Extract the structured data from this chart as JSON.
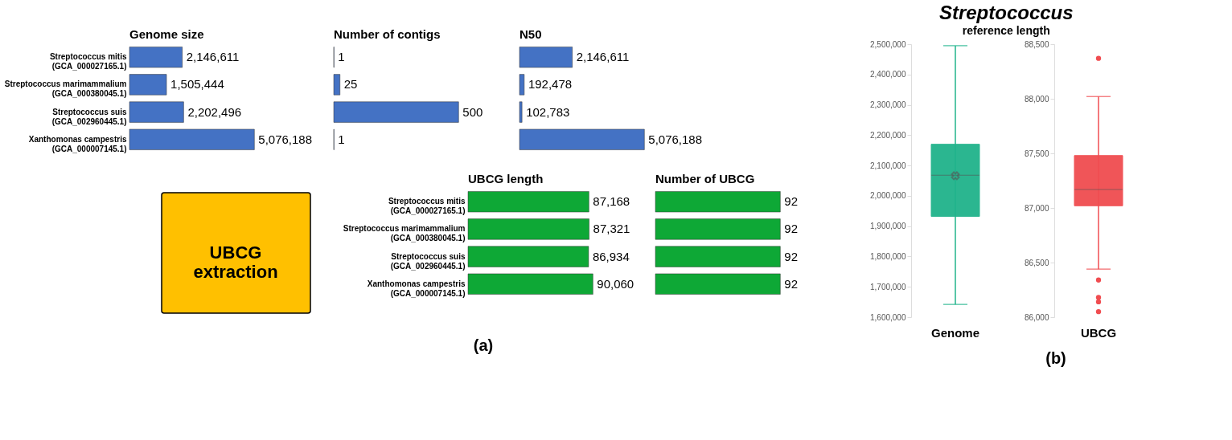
{
  "chart_data": [
    {
      "type": "bar",
      "orientation": "horizontal",
      "title": "Genome size",
      "categories": [
        "Streptococcus mitis\n(GCA_000027165.1)",
        "Streptococcus marimammalium\n(GCA_000380045.1)",
        "Streptococcus suis\n(GCA_002960445.1)",
        "Xanthomonas campestris\n(GCA_000007145.1)"
      ],
      "values": [
        2146611,
        1505444,
        2202496,
        5076188
      ],
      "value_labels": [
        "2,146,611",
        "1,505,444",
        "2,202,496",
        "5,076,188"
      ],
      "data_labels": true,
      "color": "#4472c4",
      "tick_labels": "y"
    },
    {
      "type": "bar",
      "orientation": "horizontal",
      "title": "Number of contigs",
      "categories": [
        null,
        null,
        null,
        null
      ],
      "values": [
        1,
        25,
        500,
        1
      ],
      "data_labels": true,
      "color": "#4472c4",
      "tick_labels": false
    },
    {
      "type": "bar",
      "orientation": "horizontal",
      "title": "N50",
      "categories": [
        null,
        null,
        null,
        null
      ],
      "values": [
        2146611,
        192478,
        102783,
        5076188
      ],
      "value_labels": [
        "2,146,611",
        "192,478",
        "102,783",
        "5,076,188"
      ],
      "data_labels": true,
      "color": "#4472c4",
      "tick_labels": false
    },
    {
      "type": "bar",
      "orientation": "horizontal",
      "title": "UBCG length",
      "categories": [
        "Streptococcus mitis\n(GCA_000027165.1)",
        "Streptococcus marimammalium\n(GCA_000380045.1)",
        "Streptococcus suis\n(GCA_002960445.1)",
        "Xanthomonas campestris\n(GCA_000007145.1)"
      ],
      "values": [
        87168,
        87321,
        86934,
        90060
      ],
      "value_labels": [
        "87,168",
        "87,321",
        "86,934",
        "90,060"
      ],
      "data_labels": true,
      "color": "#0ea836",
      "tick_labels": "y",
      "annotations": [
        "UBCG extraction",
        "(a)"
      ]
    },
    {
      "type": "bar",
      "orientation": "horizontal",
      "title": "Number of UBCG",
      "categories": [
        null,
        null,
        null,
        null
      ],
      "values": [
        92,
        92,
        92,
        92
      ],
      "data_labels": true,
      "color": "#0ea836",
      "tick_labels": false
    },
    {
      "type": "box",
      "title": "Streptococcus",
      "subtitle": "reference length",
      "categories": [
        "Genome"
      ],
      "color": "#20b38b",
      "boxes": [
        {
          "low": 1642000,
          "q1": 1932000,
          "median": 2068000,
          "q3": 2170000,
          "high": 2495000,
          "mean": 2066000
        }
      ],
      "ylim": [
        1600000,
        2500000
      ],
      "yticks": [
        {
          "value": 1600000,
          "label": "1,600,000"
        },
        {
          "value": 1700000,
          "label": "1,700,000"
        },
        {
          "value": 1800000,
          "label": "1,800,000"
        },
        {
          "value": 1900000,
          "label": "1,900,000"
        },
        {
          "value": 2000000,
          "label": "2,000,000"
        },
        {
          "value": 2100000,
          "label": "2,100,000"
        },
        {
          "value": 2200000,
          "label": "2,200,000"
        },
        {
          "value": 2300000,
          "label": "2,300,000"
        },
        {
          "value": 2400000,
          "label": "2,400,000"
        },
        {
          "value": 2500000,
          "label": "2,500,000"
        }
      ]
    },
    {
      "type": "box",
      "categories": [
        "UBCG"
      ],
      "color": "#f04c50",
      "boxes": [
        {
          "low": 86440,
          "q1": 87020,
          "median": 87170,
          "q3": 87480,
          "high": 88020,
          "outliers": [
            88370,
            86340,
            86180,
            86140,
            86050
          ]
        }
      ],
      "ylim": [
        86000,
        88500
      ],
      "yticks": [
        {
          "value": 86000,
          "label": "86,000"
        },
        {
          "value": 86500,
          "label": "86,500"
        },
        {
          "value": 87000,
          "label": "87,000"
        },
        {
          "value": 87500,
          "label": "87,500"
        },
        {
          "value": 88000,
          "label": "88,000"
        },
        {
          "value": 88500,
          "label": "88,500"
        }
      ],
      "annotations": [
        "(b)"
      ]
    }
  ]
}
